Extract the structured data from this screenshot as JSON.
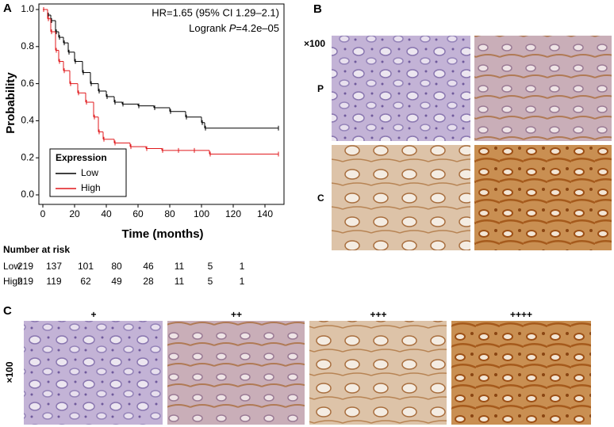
{
  "chart_data": {
    "type": "line",
    "annotations": [
      "HR=1.65 (95% CI 1.29–2.1)",
      [
        "Logrank ",
        "P",
        "=4.2e–05"
      ]
    ],
    "xlabel": "Time (months)",
    "ylabel": "Probability",
    "legend_title": "Expression",
    "xlim": [
      0,
      150
    ],
    "ylim": [
      0,
      1
    ],
    "xticks": [
      0,
      20,
      40,
      60,
      80,
      100,
      120,
      140
    ],
    "yticks": [
      {
        "value": 0,
        "label": "0.0"
      },
      {
        "value": 0.2,
        "label": "0.2"
      },
      {
        "value": 0.4,
        "label": "0.4"
      },
      {
        "value": 0.6,
        "label": "0.6"
      },
      {
        "value": 0.8,
        "label": "0.8"
      },
      {
        "value": 1,
        "label": "1.0"
      }
    ],
    "series": [
      {
        "name": "Low",
        "color": "#000000",
        "x": [
          0,
          3,
          5,
          8,
          10,
          13,
          16,
          20,
          25,
          30,
          35,
          40,
          45,
          50,
          60,
          70,
          80,
          90,
          100,
          102,
          148
        ],
        "values": [
          1,
          0.97,
          0.94,
          0.88,
          0.85,
          0.82,
          0.77,
          0.72,
          0.66,
          0.6,
          0.56,
          0.53,
          0.5,
          0.49,
          0.48,
          0.47,
          0.45,
          0.42,
          0.39,
          0.36,
          0.36
        ]
      },
      {
        "name": "High",
        "color": "#e0191c",
        "x": [
          0,
          3,
          5,
          8,
          10,
          13,
          17,
          22,
          27,
          32,
          35,
          38,
          45,
          55,
          65,
          75,
          85,
          95,
          105,
          148
        ],
        "values": [
          1,
          0.95,
          0.88,
          0.78,
          0.72,
          0.67,
          0.6,
          0.55,
          0.5,
          0.42,
          0.34,
          0.3,
          0.28,
          0.26,
          0.25,
          0.24,
          0.24,
          0.24,
          0.22,
          0.22
        ]
      }
    ]
  },
  "panel_labels": [
    "A",
    "B",
    "C"
  ],
  "risk_table": {
    "title": "Number at risk",
    "rows": [
      [
        "219",
        "137",
        "101",
        "80",
        "46",
        "11",
        "5",
        "1"
      ],
      [
        "219",
        "119",
        "62",
        "49",
        "28",
        "11",
        "5",
        "1"
      ]
    ]
  },
  "panel_b": {
    "magnification": "×100",
    "rows": [
      "P",
      "C"
    ]
  },
  "panel_c": {
    "magnification": "×100",
    "grades": [
      "+",
      "++",
      "+++",
      "++++"
    ]
  }
}
